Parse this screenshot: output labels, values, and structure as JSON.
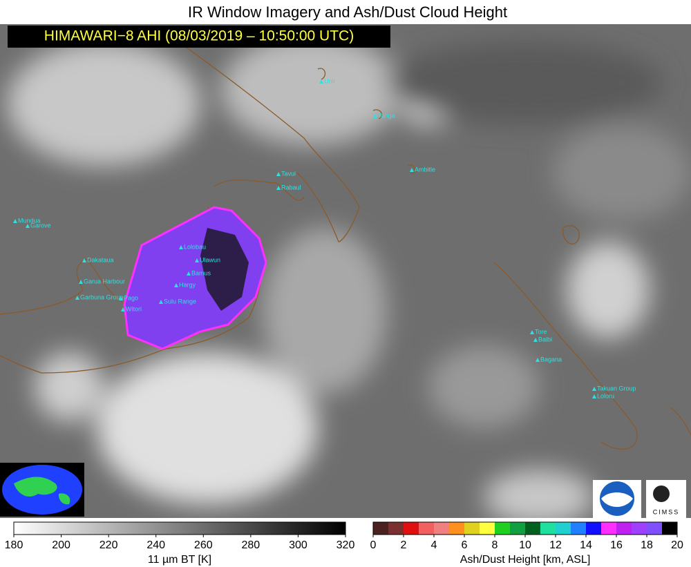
{
  "title": "IR Window Imagery and Ash/Dust Cloud Height",
  "subtitle": "HIMAWARI−8 AHI (08/03/2019 – 10:50:00 UTC)",
  "volcanoes": [
    "Unir",
    "Tanga",
    "Ambitle",
    "Tavui",
    "Rabaul",
    "Mundua",
    "Garove",
    "Dakataua",
    "Garua Harbour",
    "Garbuna Group",
    "Pago",
    "Witori",
    "Lolobau",
    "Ulawun",
    "Bamus",
    "Hargy",
    "Sulu Range",
    "Tore",
    "Balbi",
    "Bagana",
    "Takuan Group",
    "Loloru"
  ],
  "logos": {
    "cimss": "CIMSS"
  },
  "colorbars": [
    {
      "label": "11 µm BT [K]",
      "range": [
        180,
        320
      ],
      "ticks": [
        180,
        200,
        220,
        240,
        260,
        280,
        300,
        320
      ],
      "colors": [
        "#ffffff",
        "#000000"
      ]
    },
    {
      "label": "Ash/Dust Height [km, ASL]",
      "range": [
        0,
        20
      ],
      "ticks": [
        0,
        2,
        4,
        6,
        8,
        10,
        12,
        14,
        16,
        18,
        20
      ],
      "colors": [
        "#4a2020",
        "#7a3030",
        "#e01010",
        "#f06060",
        "#f08080",
        "#ff9020",
        "#e0d020",
        "#ffff40",
        "#20d020",
        "#10a040",
        "#006020",
        "#20e0a0",
        "#20d0d0",
        "#2080ff",
        "#1010ff",
        "#ff30ff",
        "#c020f0",
        "#a040ff",
        "#8050ff",
        "#000000"
      ]
    }
  ]
}
